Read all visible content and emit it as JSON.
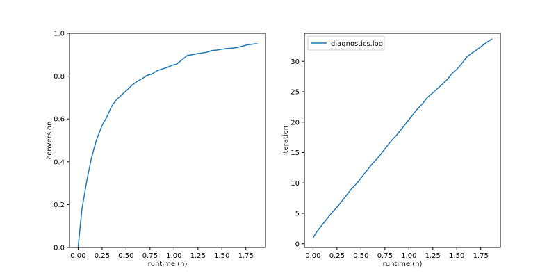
{
  "colors": {
    "series": "#1f77b4",
    "axis": "#000000",
    "legend_border": "#cccccc"
  },
  "chart_data": [
    {
      "type": "line",
      "title": "",
      "xlabel": "runtime (h)",
      "ylabel": "conversion",
      "xlim": [
        -0.09,
        1.955
      ],
      "ylim": [
        0,
        1
      ],
      "xticks": [
        0,
        0.25,
        0.5,
        0.75,
        1.0,
        1.25,
        1.5,
        1.75
      ],
      "xtick_labels": [
        "0.00",
        "0.25",
        "0.50",
        "0.75",
        "1.00",
        "1.25",
        "1.50",
        "1.75"
      ],
      "yticks": [
        0,
        0.2,
        0.4,
        0.6,
        0.8,
        1.0
      ],
      "ytick_labels": [
        "0.0",
        "0.2",
        "0.4",
        "0.6",
        "0.8",
        "1.0"
      ],
      "legend": null,
      "series": [
        {
          "x": [
            0.0,
            0.04,
            0.09,
            0.14,
            0.19,
            0.25,
            0.3,
            0.35,
            0.4,
            0.46,
            0.51,
            0.56,
            0.61,
            0.67,
            0.72,
            0.77,
            0.82,
            0.88,
            0.93,
            0.98,
            1.03,
            1.08,
            1.14,
            1.19,
            1.24,
            1.29,
            1.34,
            1.4,
            1.45,
            1.5,
            1.55,
            1.61,
            1.66,
            1.71,
            1.76,
            1.81,
            1.87
          ],
          "y": [
            0.0,
            0.18,
            0.31,
            0.42,
            0.5,
            0.57,
            0.61,
            0.66,
            0.69,
            0.715,
            0.735,
            0.757,
            0.774,
            0.789,
            0.804,
            0.81,
            0.825,
            0.834,
            0.841,
            0.851,
            0.857,
            0.875,
            0.897,
            0.9,
            0.905,
            0.908,
            0.912,
            0.92,
            0.922,
            0.926,
            0.929,
            0.931,
            0.934,
            0.94,
            0.946,
            0.949,
            0.952
          ]
        }
      ]
    },
    {
      "type": "line",
      "title": "",
      "xlabel": "runtime (h)",
      "ylabel": "iteration",
      "xlim": [
        -0.09,
        1.955
      ],
      "ylim": [
        -0.6,
        34.6
      ],
      "xticks": [
        0,
        0.25,
        0.5,
        0.75,
        1.0,
        1.25,
        1.5,
        1.75
      ],
      "xtick_labels": [
        "0.00",
        "0.25",
        "0.50",
        "0.75",
        "1.00",
        "1.25",
        "1.50",
        "1.75"
      ],
      "yticks": [
        0,
        5,
        10,
        15,
        20,
        25,
        30
      ],
      "ytick_labels": [
        "0",
        "5",
        "10",
        "15",
        "20",
        "25",
        "30"
      ],
      "legend": "top-left",
      "series": [
        {
          "name": "diagnostics.log",
          "x": [
            0.0,
            0.04,
            0.09,
            0.14,
            0.19,
            0.25,
            0.3,
            0.35,
            0.4,
            0.46,
            0.51,
            0.56,
            0.61,
            0.67,
            0.72,
            0.77,
            0.82,
            0.88,
            0.93,
            0.98,
            1.03,
            1.08,
            1.14,
            1.19,
            1.24,
            1.29,
            1.34,
            1.4,
            1.45,
            1.5,
            1.55,
            1.61,
            1.66,
            1.71,
            1.76,
            1.81,
            1.87
          ],
          "y": [
            1,
            2,
            3,
            4,
            5,
            6,
            7,
            8,
            9,
            10,
            11,
            12,
            13,
            14,
            15,
            16,
            17,
            18,
            19,
            20,
            21,
            22,
            23,
            24,
            24.7,
            25.4,
            26.1,
            27,
            28,
            28.7,
            29.6,
            30.8,
            31.4,
            31.9,
            32.5,
            33.1,
            33.7
          ]
        }
      ]
    }
  ]
}
